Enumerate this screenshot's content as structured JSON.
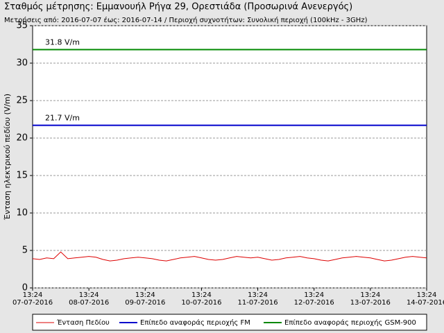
{
  "chart_data": {
    "type": "line",
    "title": "Σταθμός μέτρησης: Εμμανουήλ Ρήγα 29, Ορεστιάδα (Προσωρινά Ανενεργός)",
    "subtitle": "Μετρήσεις από: 2016-07-07 έως: 2016-07-14 / Περιοχή συχνοτήτων: Συνολική περιοχή (100kHz - 3GHz)",
    "y_label": "Ένταση ηλεκτρικού πεδίου (V/m)",
    "ylim": [
      0,
      35
    ],
    "yticks": [
      0,
      5,
      10,
      15,
      20,
      25,
      30,
      35
    ],
    "grid": true,
    "xlim": [
      0,
      168
    ],
    "xticks": [
      {
        "value": 0,
        "label": "13:24\n07-07-2016"
      },
      {
        "value": 24,
        "label": "13:24\n08-07-2016"
      },
      {
        "value": 48,
        "label": "13:24\n09-07-2016"
      },
      {
        "value": 72,
        "label": "13:24\n10-07-2016"
      },
      {
        "value": 96,
        "label": "13:24\n11-07-2016"
      },
      {
        "value": 120,
        "label": "13:24\n12-07-2016"
      },
      {
        "value": 144,
        "label": "13:24\n13-07-2016"
      },
      {
        "value": 168,
        "label": "13:24\n14-07-2016"
      }
    ],
    "legend": "bottom",
    "series": [
      {
        "name": "Ένταση Πεδίου",
        "color": "#dd0000",
        "x": [
          0,
          3,
          6,
          9,
          12,
          15,
          18,
          21,
          24,
          27,
          30,
          33,
          36,
          39,
          42,
          45,
          48,
          51,
          54,
          57,
          60,
          63,
          66,
          69,
          72,
          75,
          78,
          81,
          84,
          87,
          90,
          93,
          96,
          99,
          102,
          105,
          108,
          111,
          114,
          117,
          120,
          123,
          126,
          129,
          132,
          135,
          138,
          141,
          144,
          147,
          150,
          153,
          156,
          159,
          162,
          165,
          168
        ],
        "values": [
          3.9,
          3.8,
          4.0,
          3.9,
          4.8,
          3.9,
          4.0,
          4.1,
          4.2,
          4.1,
          3.8,
          3.6,
          3.7,
          3.9,
          4.0,
          4.1,
          4.0,
          3.9,
          3.7,
          3.6,
          3.8,
          4.0,
          4.1,
          4.2,
          4.0,
          3.8,
          3.7,
          3.8,
          4.0,
          4.2,
          4.1,
          4.0,
          4.1,
          3.9,
          3.7,
          3.8,
          4.0,
          4.1,
          4.2,
          4.0,
          3.9,
          3.7,
          3.6,
          3.8,
          4.0,
          4.1,
          4.2,
          4.1,
          4.0,
          3.8,
          3.6,
          3.7,
          3.9,
          4.1,
          4.2,
          4.1,
          4.0
        ]
      },
      {
        "name": "Επίπεδο αναφοράς περιοχής FM",
        "color": "#0000cc",
        "x": [
          0,
          168
        ],
        "values": [
          21.7,
          21.7
        ],
        "label": "21.7 V/m"
      },
      {
        "name": "Επίπεδο αναφοράς περιοχής GSM-900",
        "color": "#008800",
        "x": [
          0,
          168
        ],
        "values": [
          31.8,
          31.8
        ],
        "label": "31.8 V/m"
      }
    ]
  }
}
